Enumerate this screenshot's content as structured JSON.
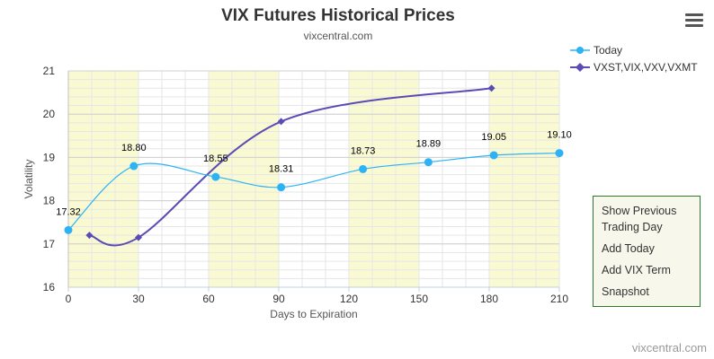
{
  "chart_data": {
    "type": "line",
    "title": "VIX Futures Historical Prices",
    "subtitle": "vixcentral.com",
    "xlabel": "Days to Expiration",
    "ylabel": "Volatility",
    "xlim": [
      0,
      210
    ],
    "ylim": [
      16,
      21
    ],
    "x_ticks": [
      0,
      30,
      60,
      90,
      120,
      150,
      180,
      210
    ],
    "y_ticks": [
      16,
      17,
      18,
      19,
      20,
      21
    ],
    "grid": true,
    "legend_position": "top-right",
    "shaded_bands": [
      [
        0,
        30
      ],
      [
        60,
        90
      ],
      [
        120,
        150
      ],
      [
        180,
        210
      ]
    ],
    "series": [
      {
        "name": "Today",
        "color": "#2db3f5",
        "marker": "circle",
        "x": [
          0,
          28,
          63,
          91,
          126,
          154,
          182,
          210
        ],
        "y": [
          17.32,
          18.8,
          18.55,
          18.31,
          18.73,
          18.89,
          19.05,
          19.1
        ],
        "data_labels": [
          "17.32",
          "18.80",
          "18.55",
          "18.31",
          "18.73",
          "18.89",
          "19.05",
          "19.10"
        ]
      },
      {
        "name": "VXST,VIX,VXV,VXMT",
        "color": "#5b4bb5",
        "marker": "diamond",
        "x": [
          9,
          30,
          91,
          181
        ],
        "y": [
          17.2,
          17.15,
          19.83,
          20.6
        ]
      }
    ]
  },
  "menu": {
    "icon": "hamburger-menu-icon",
    "items": [
      "Show Previous Trading Day",
      "Add Today",
      "Add VIX Term",
      "Snapshot"
    ]
  },
  "credits": "vixcentral.com",
  "colors": {
    "band": "#fafad2",
    "grid": "#e6e6e6",
    "menu_border": "#2d7a2d",
    "menu_bg": "#f7f7ec"
  }
}
